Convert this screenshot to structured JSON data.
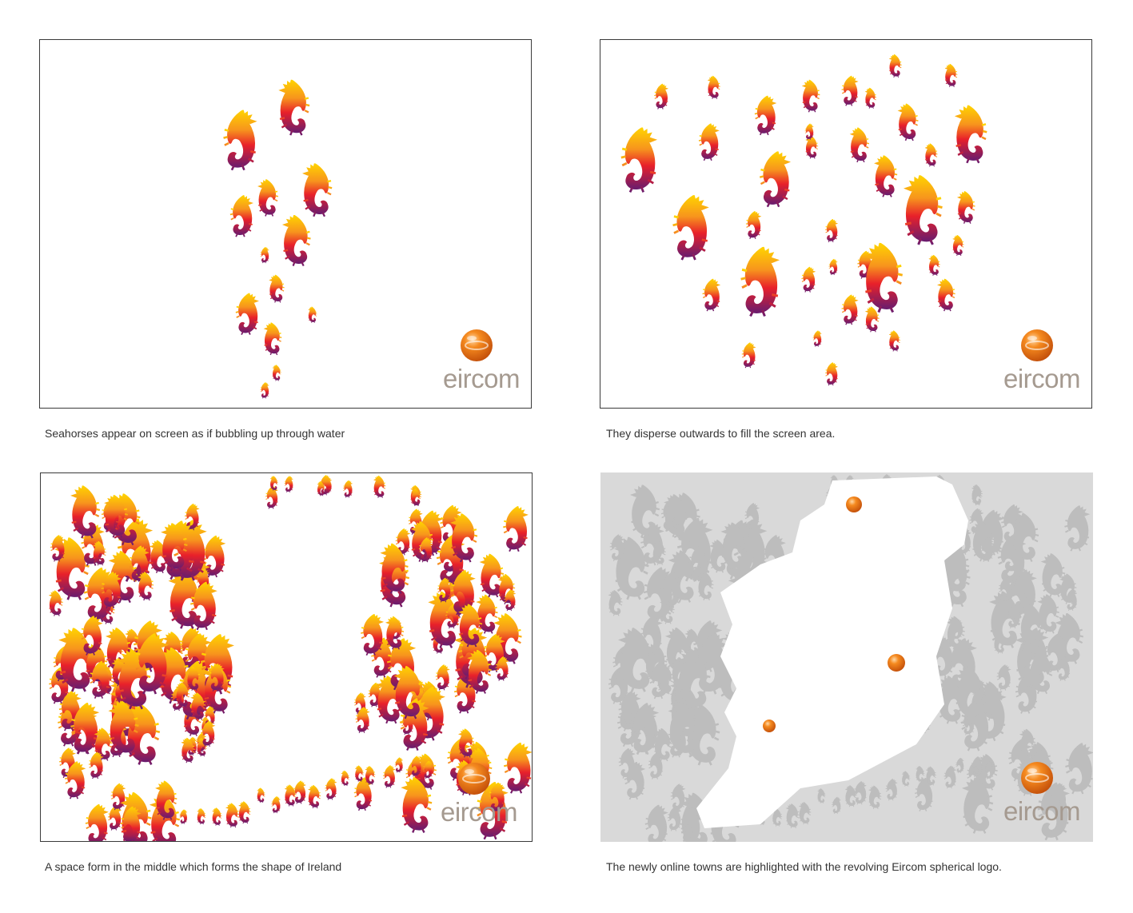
{
  "panels": [
    {
      "id": "panel-1",
      "caption": "Seahorses appear on screen as if bubbling up through water",
      "brand": "eircom"
    },
    {
      "id": "panel-2",
      "caption": "They disperse outwards to fill the screen area.",
      "brand": "eircom"
    },
    {
      "id": "panel-3",
      "caption": "A space form in the middle which forms the shape of Ireland",
      "brand": "eircom"
    },
    {
      "id": "panel-4",
      "caption": "The newly online towns are highlighted with the revolving Eircom spherical logo.",
      "brand": "eircom"
    }
  ],
  "colors": {
    "seahorse_top": "#ffd400",
    "seahorse_mid": "#e8202a",
    "seahorse_bottom": "#6a1c6e",
    "grey_panel": "#d9d9d9",
    "grey_seahorse": "#bfbfbf",
    "logo_orange": "#f07a12",
    "logo_text": "#a59a90"
  },
  "icons": [
    "seahorse-icon",
    "eircom-sphere-icon"
  ]
}
